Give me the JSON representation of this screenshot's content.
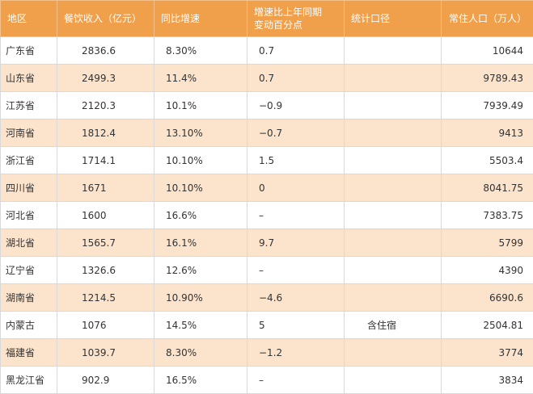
{
  "table": {
    "header": [
      "地区",
      "餐饮收入（亿元）",
      "同比增速",
      [
        "增速比上年同期",
        "变动百分点"
      ],
      "统计口径",
      "常住人口（万人）"
    ],
    "rows": [
      [
        "广东省",
        "2836.6",
        "8.30%",
        "0.7",
        null,
        "10644"
      ],
      [
        "山东省",
        "2499.3",
        "11.4%",
        "0.7",
        null,
        "9789.43"
      ],
      [
        "江苏省",
        "2120.3",
        "10.1%",
        "−0.9",
        null,
        "7939.49"
      ],
      [
        "河南省",
        "1812.4",
        "13.10%",
        "−0.7",
        null,
        "9413"
      ],
      [
        "浙江省",
        "1714.1",
        "10.10%",
        "1.5",
        null,
        "5503.4"
      ],
      [
        "四川省",
        "1671",
        "10.10%",
        "0",
        null,
        "8041.75"
      ],
      [
        "河北省",
        "1600",
        "16.6%",
        "–",
        null,
        "7383.75"
      ],
      [
        "湖北省",
        "1565.7",
        "16.1%",
        "9.7",
        null,
        "5799"
      ],
      [
        "辽宁省",
        "1326.6",
        "12.6%",
        "–",
        null,
        "4390"
      ],
      [
        "湖南省",
        "1214.5",
        "10.90%",
        "−4.6",
        null,
        "6690.6"
      ],
      [
        "内蒙古",
        "1076",
        "14.5%",
        "5",
        "含住宿",
        "2504.81"
      ],
      [
        "福建省",
        "1039.7",
        "8.30%",
        "−1.2",
        null,
        "3774"
      ],
      [
        "黑龙江省",
        "902.9",
        "16.5%",
        "–",
        null,
        "3834"
      ]
    ]
  }
}
